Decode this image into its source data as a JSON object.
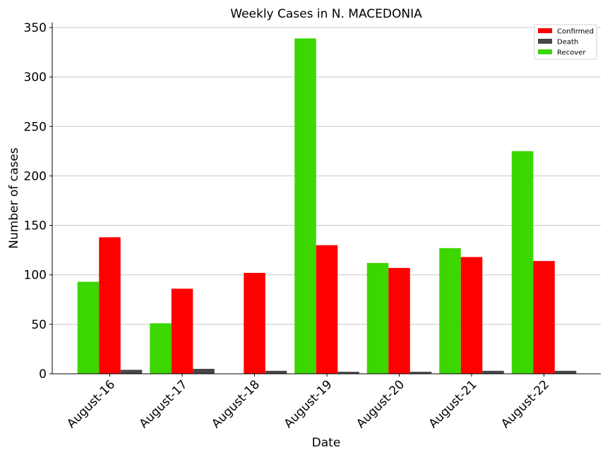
{
  "chart_data": {
    "type": "bar",
    "title": "Weekly Cases in N. MACEDONIA",
    "xlabel": "Date",
    "ylabel": "Number of cases",
    "categories": [
      "August-16",
      "August-17",
      "August-18",
      "August-19",
      "August-20",
      "August-21",
      "August-22"
    ],
    "series": [
      {
        "name": "Recover",
        "color": "#3cd600",
        "values": [
          93,
          51,
          0,
          339,
          112,
          127,
          225
        ]
      },
      {
        "name": "Confirmed",
        "color": "#ff0000",
        "values": [
          138,
          86,
          102,
          130,
          107,
          118,
          114
        ]
      },
      {
        "name": "Death",
        "color": "#474747",
        "values": [
          4,
          5,
          3,
          2,
          2,
          3,
          3
        ]
      }
    ],
    "legend_order": [
      "Confirmed",
      "Death",
      "Recover"
    ],
    "legend_position": "top-right",
    "ylim": [
      0,
      355
    ],
    "yticks": [
      0,
      50,
      100,
      150,
      200,
      250,
      300,
      350
    ],
    "grid": "y"
  }
}
